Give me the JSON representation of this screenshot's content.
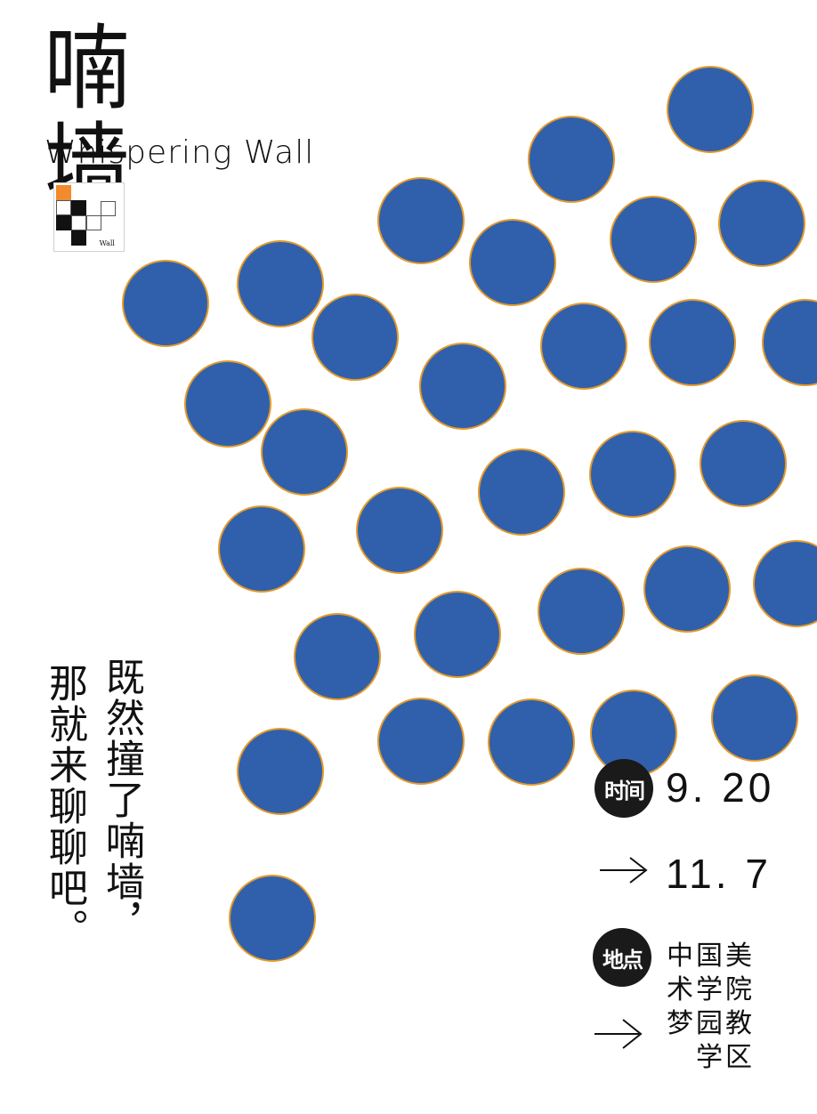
{
  "title": {
    "zh": "喃墙",
    "en": "Whispering Wall"
  },
  "logo": {
    "text": "Wall",
    "accent_color": "#f28a2e"
  },
  "poem": {
    "line1": "既然撞了喃墙，",
    "line2": "那就来聊聊吧。"
  },
  "info": {
    "time_badge": "时间",
    "start_date": "9. 20",
    "end_date": "11. 7",
    "place_badge": "地点",
    "venue_lines": [
      "中国美",
      "术学院",
      "梦园教",
      "学区"
    ]
  },
  "colors": {
    "dot_fill": "#3060ac",
    "dot_ring": "#e39a2a"
  }
}
